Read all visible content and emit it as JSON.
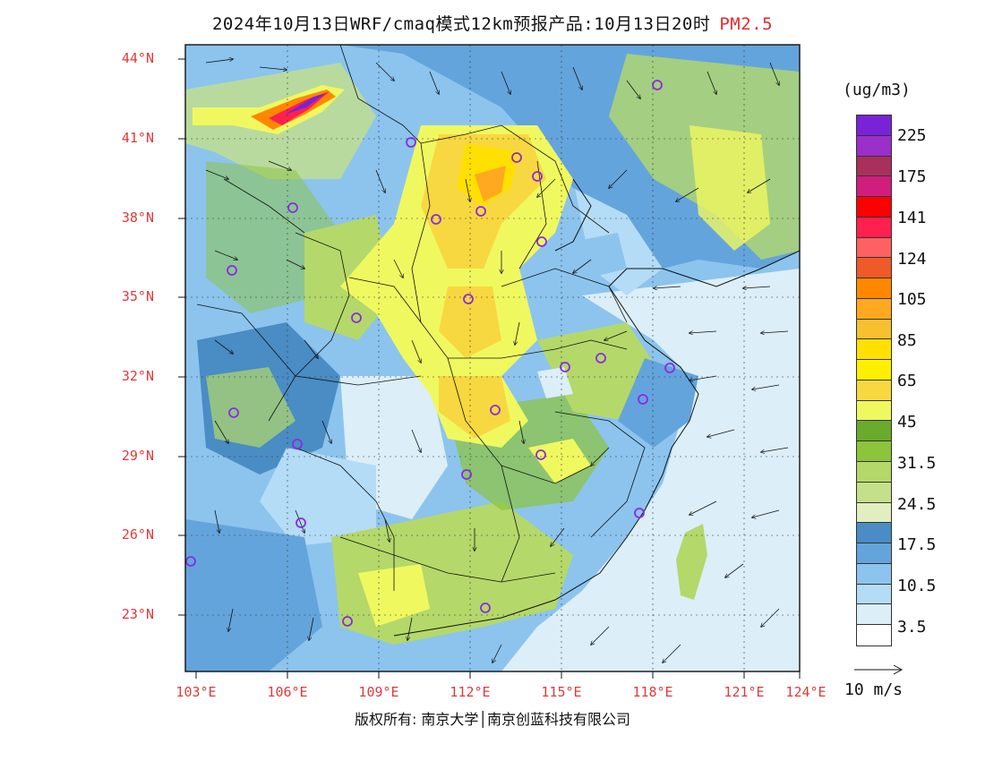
{
  "title": {
    "text": "2024年10月13日WRF/cmaq模式12km预报产品:10月13日20时",
    "pollutant": "PM2.5"
  },
  "axes": {
    "lat_labels": [
      "44°N",
      "41°N",
      "38°N",
      "35°N",
      "32°N",
      "29°N",
      "26°N",
      "23°N"
    ],
    "lon_labels": [
      "103°E",
      "106°E",
      "109°E",
      "112°E",
      "115°E",
      "118°E",
      "121°E",
      "124°E"
    ]
  },
  "colorbar": {
    "units": "(ug/m3)",
    "levels": [
      "225",
      "175",
      "141",
      "124",
      "105",
      "85",
      "65",
      "45",
      "31.5",
      "24.5",
      "17.5",
      "10.5",
      "3.5"
    ],
    "colors": [
      "#7a22d8",
      "#9b2fc9",
      "#a8305a",
      "#d01e7e",
      "#ff0000",
      "#ff2050",
      "#ff6060",
      "#f05a28",
      "#ff8800",
      "#ffa820",
      "#f8c030",
      "#ffe000",
      "#fff000",
      "#f8d840",
      "#f0f860",
      "#6aaa2c",
      "#8cc43c",
      "#b4d86a",
      "#c4e08a",
      "#e2eec0",
      "#4a8cc4",
      "#64a4dc",
      "#8cc4ee",
      "#b4dcf6",
      "#dceef8",
      "#ffffff"
    ]
  },
  "wind_reference": {
    "label": "10 m/s"
  },
  "copyright": "版权所有: 南京大学│南京创蓝科技有限公司"
}
